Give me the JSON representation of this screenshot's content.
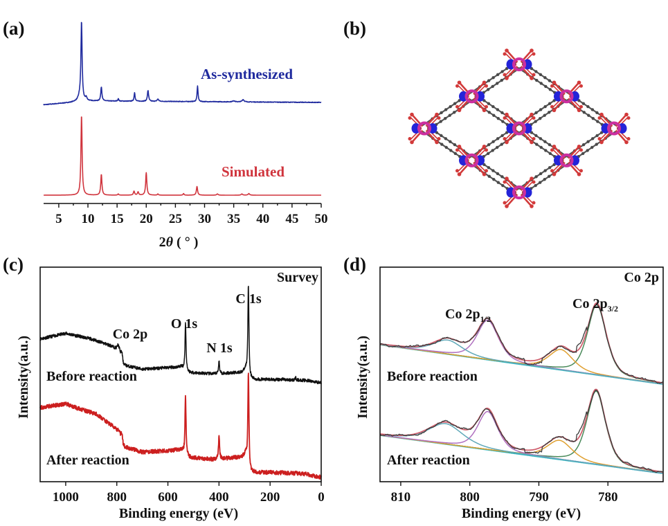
{
  "figure": {
    "panels": [
      "(a)",
      "(b)",
      "(c)",
      "(d)"
    ]
  },
  "chart_data": [
    {
      "id": "a",
      "panel_label": "(a)",
      "type": "line",
      "title": "",
      "xlabel": "2θ ( ° )",
      "xlabel_parts": {
        "pre": "2",
        "theta": "θ",
        "post": " ( ° )"
      },
      "ylabel": "",
      "xlim": [
        2.4,
        50
      ],
      "xticks": [
        5,
        10,
        15,
        20,
        25,
        30,
        35,
        40,
        45,
        50
      ],
      "xtick_labels": [
        "5",
        "10",
        "15",
        "20",
        "25",
        "30",
        "35",
        "40",
        "45",
        "50"
      ],
      "grid": false,
      "series": [
        {
          "name": "As-synthesized",
          "color": "#1f2a9e",
          "offset": 1.0,
          "baseline_shape": [
            [
              2.4,
              -0.03
            ],
            [
              4,
              -0.02
            ],
            [
              7,
              0.0
            ],
            [
              8.5,
              0.02
            ],
            [
              50,
              0.0
            ]
          ],
          "peaks": [
            {
              "x": 8.9,
              "h": 1.0,
              "w": 0.12
            },
            {
              "x": 8.6,
              "h": 0.05,
              "w": 0.3
            },
            {
              "x": 9.7,
              "h": 0.04,
              "w": 0.15
            },
            {
              "x": 12.3,
              "h": 0.18,
              "w": 0.12
            },
            {
              "x": 15.2,
              "h": 0.03,
              "w": 0.1
            },
            {
              "x": 18.0,
              "h": 0.11,
              "w": 0.1
            },
            {
              "x": 20.3,
              "h": 0.14,
              "w": 0.12
            },
            {
              "x": 22.0,
              "h": 0.03,
              "w": 0.15
            },
            {
              "x": 28.8,
              "h": 0.2,
              "w": 0.1
            },
            {
              "x": 35.0,
              "h": 0.015,
              "w": 0.2
            },
            {
              "x": 36.6,
              "h": 0.03,
              "w": 0.2
            }
          ]
        },
        {
          "name": "Simulated",
          "color": "#d0343d",
          "offset": 0.0,
          "baseline_shape": [
            [
              2.4,
              0.0
            ],
            [
              50,
              0.0
            ]
          ],
          "peaks": [
            {
              "x": 8.9,
              "h": 1.0,
              "w": 0.12
            },
            {
              "x": 12.3,
              "h": 0.26,
              "w": 0.12
            },
            {
              "x": 15.2,
              "h": 0.015,
              "w": 0.1
            },
            {
              "x": 17.9,
              "h": 0.05,
              "w": 0.12
            },
            {
              "x": 18.6,
              "h": 0.04,
              "w": 0.12
            },
            {
              "x": 20.0,
              "h": 0.28,
              "w": 0.12
            },
            {
              "x": 22.0,
              "h": 0.015,
              "w": 0.1
            },
            {
              "x": 26.4,
              "h": 0.02,
              "w": 0.1
            },
            {
              "x": 28.7,
              "h": 0.11,
              "w": 0.12
            },
            {
              "x": 32.2,
              "h": 0.015,
              "w": 0.15
            },
            {
              "x": 36.4,
              "h": 0.015,
              "w": 0.15
            },
            {
              "x": 37.6,
              "h": 0.02,
              "w": 0.15
            }
          ]
        }
      ]
    },
    {
      "id": "c",
      "panel_label": "(c)",
      "type": "line",
      "title": "Survey",
      "xlabel": "Binding energy (eV)",
      "ylabel": "Intensity(a.u.)",
      "xlim": [
        1100,
        0
      ],
      "xticks": [
        1000,
        800,
        600,
        400,
        200,
        0
      ],
      "xtick_labels": [
        "1000",
        "800",
        "600",
        "400",
        "200",
        "0"
      ],
      "grid": false,
      "annotations": [
        {
          "text": "Co 2p",
          "x": 780
        },
        {
          "text": "O 1s",
          "x": 531
        },
        {
          "text": "N 1s",
          "x": 400
        },
        {
          "text": "C 1s",
          "x": 285
        }
      ],
      "series": [
        {
          "name": "Before reaction",
          "color": "#111111",
          "offset": 1.0,
          "baseline_shape": [
            [
              1100,
              0.55
            ],
            [
              1000,
              0.62
            ],
            [
              900,
              0.55
            ],
            [
              820,
              0.46
            ],
            [
              790,
              0.4
            ],
            [
              775,
              0.22
            ],
            [
              700,
              0.17
            ],
            [
              545,
              0.2
            ],
            [
              532,
              0.13
            ],
            [
              420,
              0.11
            ],
            [
              310,
              0.13
            ],
            [
              295,
              0.16
            ],
            [
              285,
              0.04
            ],
            [
              200,
              0.04
            ],
            [
              60,
              0.03
            ],
            [
              0,
              0.0
            ]
          ],
          "peaks": [
            {
              "x": 531,
              "h": 0.62,
              "w": 2.5
            },
            {
              "x": 400,
              "h": 0.16,
              "w": 2.5
            },
            {
              "x": 285,
              "h": 1.2,
              "w": 2.5
            },
            {
              "x": 780,
              "h": 0.1,
              "w": 4
            },
            {
              "x": 795,
              "h": 0.06,
              "w": 4
            },
            {
              "x": 150,
              "h": 0.02,
              "w": 2
            },
            {
              "x": 100,
              "h": 0.03,
              "w": 2
            }
          ],
          "noise": 0.02
        },
        {
          "name": "After reaction",
          "color": "#cc1f1f",
          "offset": 0.0,
          "baseline_shape": [
            [
              1100,
              0.88
            ],
            [
              1000,
              0.93
            ],
            [
              960,
              0.88
            ],
            [
              880,
              0.8
            ],
            [
              820,
              0.66
            ],
            [
              790,
              0.58
            ],
            [
              775,
              0.4
            ],
            [
              700,
              0.33
            ],
            [
              545,
              0.36
            ],
            [
              532,
              0.27
            ],
            [
              420,
              0.24
            ],
            [
              310,
              0.27
            ],
            [
              295,
              0.3
            ],
            [
              285,
              0.08
            ],
            [
              200,
              0.08
            ],
            [
              60,
              0.06
            ],
            [
              0,
              0.02
            ]
          ],
          "peaks": [
            {
              "x": 531,
              "h": 0.75,
              "w": 2.5
            },
            {
              "x": 400,
              "h": 0.28,
              "w": 2.5
            },
            {
              "x": 285,
              "h": 1.25,
              "w": 2.5
            },
            {
              "x": 780,
              "h": 0.1,
              "w": 4
            },
            {
              "x": 150,
              "h": 0.02,
              "w": 2
            },
            {
              "x": 100,
              "h": 0.03,
              "w": 2
            }
          ],
          "noise": 0.025
        }
      ]
    },
    {
      "id": "d",
      "panel_label": "(d)",
      "type": "line",
      "title": "Co 2p",
      "xlabel": "Binding energy (eV)",
      "ylabel": "Intensity(a.u.)",
      "xlim": [
        813,
        772
      ],
      "xticks": [
        810,
        800,
        790,
        780
      ],
      "xtick_labels": [
        "810",
        "800",
        "790",
        "780"
      ],
      "grid": false,
      "annotations": [
        {
          "text": "Co 2p",
          "sub": "1/2",
          "x": 797.4
        },
        {
          "text": "Co 2p",
          "sub": "3/2",
          "x": 781.6
        }
      ],
      "fit_colors": {
        "raw": "#3b3b3b",
        "envelope": "#d0606e",
        "background": "#2fb8c4",
        "p32": "#4a8a5a",
        "p12": "#b070c0",
        "sat1": "#e0a030",
        "sat2": "#5fa8b8"
      },
      "series": [
        {
          "name": "Before reaction",
          "offset": 1.0,
          "background": [
            [
              813,
              0.62
            ],
            [
              772,
              0.0
            ]
          ],
          "components": [
            {
              "name": "Co 2p3/2",
              "key": "p32",
              "x": 781.6,
              "h": 1.1,
              "w": 1.4
            },
            {
              "name": "satellite 1",
              "key": "sat1",
              "x": 786.8,
              "h": 0.32,
              "w": 1.8
            },
            {
              "name": "Co 2p1/2",
              "key": "p12",
              "x": 797.4,
              "h": 0.62,
              "w": 1.6
            },
            {
              "name": "satellite 2",
              "key": "sat2",
              "x": 803.2,
              "h": 0.22,
              "w": 2.2
            }
          ]
        },
        {
          "name": "After reaction",
          "offset": 0.0,
          "background": [
            [
              813,
              0.6
            ],
            [
              772,
              0.0
            ]
          ],
          "components": [
            {
              "name": "Co 2p3/2",
              "key": "p32",
              "x": 781.7,
              "h": 1.15,
              "w": 1.4
            },
            {
              "name": "satellite 1",
              "key": "sat1",
              "x": 787.0,
              "h": 0.3,
              "w": 1.9
            },
            {
              "name": "Co 2p1/2",
              "key": "p12",
              "x": 797.4,
              "h": 0.6,
              "w": 1.5
            },
            {
              "name": "satellite 2",
              "key": "sat2",
              "x": 803.5,
              "h": 0.32,
              "w": 2.6
            }
          ]
        }
      ]
    }
  ],
  "panel_b": {
    "panel_label": "(b)",
    "description": "MOF framework structure",
    "atom_colors": {
      "oxygen": "#d23a3a",
      "nitrogen": "#2424d8",
      "cobalt": "#cc2fa0",
      "carbon": "#555555"
    },
    "nodes": [
      {
        "id": "top",
        "row": 0,
        "col": 2
      },
      {
        "id": "upper-left",
        "row": 1,
        "col": 1
      },
      {
        "id": "upper-right",
        "row": 1,
        "col": 3
      },
      {
        "id": "left",
        "row": 2,
        "col": 0
      },
      {
        "id": "center",
        "row": 2,
        "col": 2
      },
      {
        "id": "right",
        "row": 2,
        "col": 4
      },
      {
        "id": "lower-left",
        "row": 3,
        "col": 1
      },
      {
        "id": "lower-right",
        "row": 3,
        "col": 3
      },
      {
        "id": "bottom",
        "row": 4,
        "col": 2
      }
    ],
    "links": [
      [
        "top",
        "upper-left"
      ],
      [
        "top",
        "upper-right"
      ],
      [
        "upper-left",
        "left"
      ],
      [
        "upper-left",
        "center"
      ],
      [
        "upper-right",
        "center"
      ],
      [
        "upper-right",
        "right"
      ],
      [
        "left",
        "lower-left"
      ],
      [
        "center",
        "lower-left"
      ],
      [
        "center",
        "lower-right"
      ],
      [
        "right",
        "lower-right"
      ],
      [
        "lower-left",
        "bottom"
      ],
      [
        "lower-right",
        "bottom"
      ]
    ]
  }
}
